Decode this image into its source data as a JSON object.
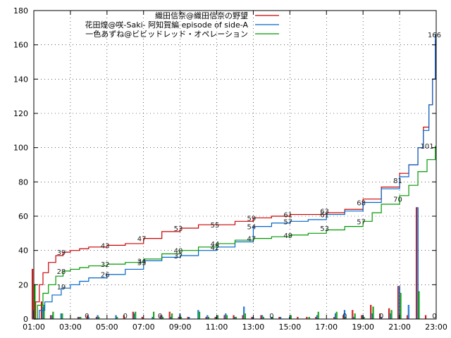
{
  "chart_data": {
    "type": "line",
    "xlim": [
      1,
      23
    ],
    "ylim": [
      0,
      180
    ],
    "yticks": [
      0,
      20,
      40,
      60,
      80,
      100,
      120,
      140,
      160,
      180
    ],
    "xticks": [
      {
        "t": 1,
        "label": "01:00"
      },
      {
        "t": 3,
        "label": "03:00"
      },
      {
        "t": 5,
        "label": "05:00"
      },
      {
        "t": 7,
        "label": "07:00"
      },
      {
        "t": 9,
        "label": "09:00"
      },
      {
        "t": 11,
        "label": "11:00"
      },
      {
        "t": 13,
        "label": "13:00"
      },
      {
        "t": 15,
        "label": "15:00"
      },
      {
        "t": 17,
        "label": "17:00"
      },
      {
        "t": 19,
        "label": "19:00"
      },
      {
        "t": 21,
        "label": "21:00"
      },
      {
        "t": 23,
        "label": "23:00"
      }
    ],
    "series": [
      {
        "name": "織田信奈@織田信奈の野望",
        "color": "#cc0000",
        "x": [
          1,
          1.1,
          1.3,
          1.5,
          1.8,
          2.2,
          2.6,
          3,
          3.5,
          4,
          5,
          6,
          7,
          8,
          9,
          10,
          11,
          12,
          13,
          14,
          15,
          16,
          17,
          18,
          19,
          20,
          21,
          21.5,
          22,
          22.3,
          22.6,
          22.8,
          22.95
        ],
        "y": [
          0,
          10,
          20,
          27,
          33,
          37,
          39,
          40,
          41,
          42,
          43,
          44,
          47,
          51,
          53,
          55,
          55,
          57,
          59,
          60,
          61,
          61,
          62,
          64,
          70,
          77,
          85,
          90,
          100,
          112,
          125,
          140,
          163
        ],
        "labels": [
          [
            2.5,
            39,
            "39"
          ],
          [
            4.9,
            43,
            "43"
          ],
          [
            6.9,
            47,
            "47"
          ],
          [
            8.9,
            53,
            "53"
          ],
          [
            10.9,
            55,
            "55"
          ],
          [
            12.9,
            59,
            "59"
          ],
          [
            14.9,
            61,
            "61"
          ],
          [
            16.9,
            63,
            "63"
          ],
          [
            20.9,
            81,
            "81"
          ]
        ]
      },
      {
        "name": "花田煌@咲-Saki- 阿知賀編 episode of side-A",
        "color": "#0066cc",
        "x": [
          1,
          1.3,
          1.6,
          2,
          2.5,
          3,
          3.5,
          4,
          5,
          6,
          7,
          8,
          9,
          10,
          11,
          12,
          13,
          14,
          15,
          16,
          17,
          18,
          19,
          20,
          21,
          21.5,
          22,
          22.3,
          22.6,
          22.8,
          22.95
        ],
        "y": [
          0,
          5,
          10,
          14,
          18,
          20,
          22,
          24,
          26,
          29,
          34,
          36,
          37,
          40,
          42,
          45,
          54,
          56,
          57,
          58,
          61,
          63,
          68,
          76,
          83,
          90,
          100,
          110,
          125,
          140,
          166
        ],
        "labels": [
          [
            2.5,
            19,
            "19"
          ],
          [
            4.9,
            26,
            "26"
          ],
          [
            6.9,
            34,
            "34"
          ],
          [
            8.9,
            37,
            "37"
          ],
          [
            10.9,
            42,
            "42"
          ],
          [
            12.9,
            54,
            "54"
          ],
          [
            14.9,
            57,
            "57"
          ],
          [
            16.9,
            61,
            "61"
          ],
          [
            18.9,
            68,
            "68"
          ],
          [
            22.9,
            166,
            "166"
          ]
        ]
      },
      {
        "name": "一色あずね@ビビッドレッド・オペレーション",
        "color": "#009900",
        "x": [
          1,
          1.2,
          1.5,
          1.8,
          2.2,
          2.6,
          3,
          3.5,
          4,
          5,
          6,
          7,
          8,
          9,
          10,
          11,
          12,
          13,
          14,
          15,
          16,
          17,
          18,
          19,
          19.5,
          20,
          21,
          21.5,
          22,
          22.5,
          22.95
        ],
        "y": [
          0,
          8,
          15,
          20,
          25,
          28,
          29,
          30,
          31,
          32,
          33,
          35,
          38,
          40,
          42,
          44,
          46,
          47,
          48,
          49,
          50,
          52,
          54,
          57,
          62,
          67,
          72,
          78,
          86,
          93,
          101
        ],
        "labels": [
          [
            2.5,
            28,
            "28"
          ],
          [
            4.9,
            32,
            "32"
          ],
          [
            6.9,
            33,
            "33"
          ],
          [
            8.9,
            40,
            "40"
          ],
          [
            10.9,
            44,
            "44"
          ],
          [
            12.9,
            47,
            "47"
          ],
          [
            14.9,
            49,
            "49"
          ],
          [
            16.9,
            53,
            "53"
          ],
          [
            18.9,
            57,
            "57"
          ],
          [
            20.9,
            70,
            "70"
          ],
          [
            22.5,
            101,
            "101"
          ]
        ]
      }
    ],
    "hourly": {
      "centers": [
        1,
        1.5,
        2,
        2.5,
        3,
        3.5,
        4,
        4.5,
        5,
        5.5,
        6,
        6.5,
        7,
        7.5,
        8,
        8.5,
        9,
        9.5,
        10,
        10.5,
        11,
        11.5,
        12,
        12.5,
        13,
        13.5,
        14,
        14.5,
        15,
        15.5,
        16,
        16.5,
        17,
        17.5,
        18,
        18.5,
        19,
        19.5,
        20,
        20.5,
        21,
        21.5,
        22,
        22.5
      ],
      "values": [
        [
          29,
          10,
          2,
          0,
          0,
          1,
          2,
          1,
          0,
          0,
          2,
          4,
          1,
          0,
          2,
          4,
          1,
          1,
          0,
          1,
          1,
          2,
          2,
          2,
          1,
          2,
          0,
          1,
          0,
          1,
          1,
          1,
          0,
          1,
          2,
          5,
          2,
          8,
          3,
          6,
          19,
          2,
          65,
          2
        ],
        [
          5,
          7,
          2,
          3,
          0,
          1,
          1,
          2,
          0,
          2,
          0,
          3,
          0,
          1,
          2,
          1,
          3,
          1,
          5,
          2,
          1,
          3,
          1,
          7,
          1,
          2,
          1,
          1,
          1,
          0,
          0,
          2,
          0,
          3,
          5,
          1,
          2,
          3,
          1,
          3,
          19,
          8,
          65,
          0
        ],
        [
          20,
          8,
          4,
          3,
          0,
          1,
          0,
          1,
          0,
          1,
          0,
          4,
          0,
          4,
          1,
          3,
          1,
          0,
          4,
          1,
          2,
          2,
          1,
          3,
          0,
          1,
          1,
          0,
          2,
          0,
          1,
          4,
          0,
          4,
          1,
          3,
          1,
          7,
          0,
          5,
          15,
          0,
          16,
          0
        ]
      ],
      "zero_labels": [
        [
          3.9,
          "0"
        ],
        [
          6,
          "0"
        ],
        [
          7.9,
          "0"
        ],
        [
          14,
          "0"
        ],
        [
          18,
          "0"
        ],
        [
          20,
          "0"
        ],
        [
          22.9,
          "0"
        ]
      ]
    }
  }
}
